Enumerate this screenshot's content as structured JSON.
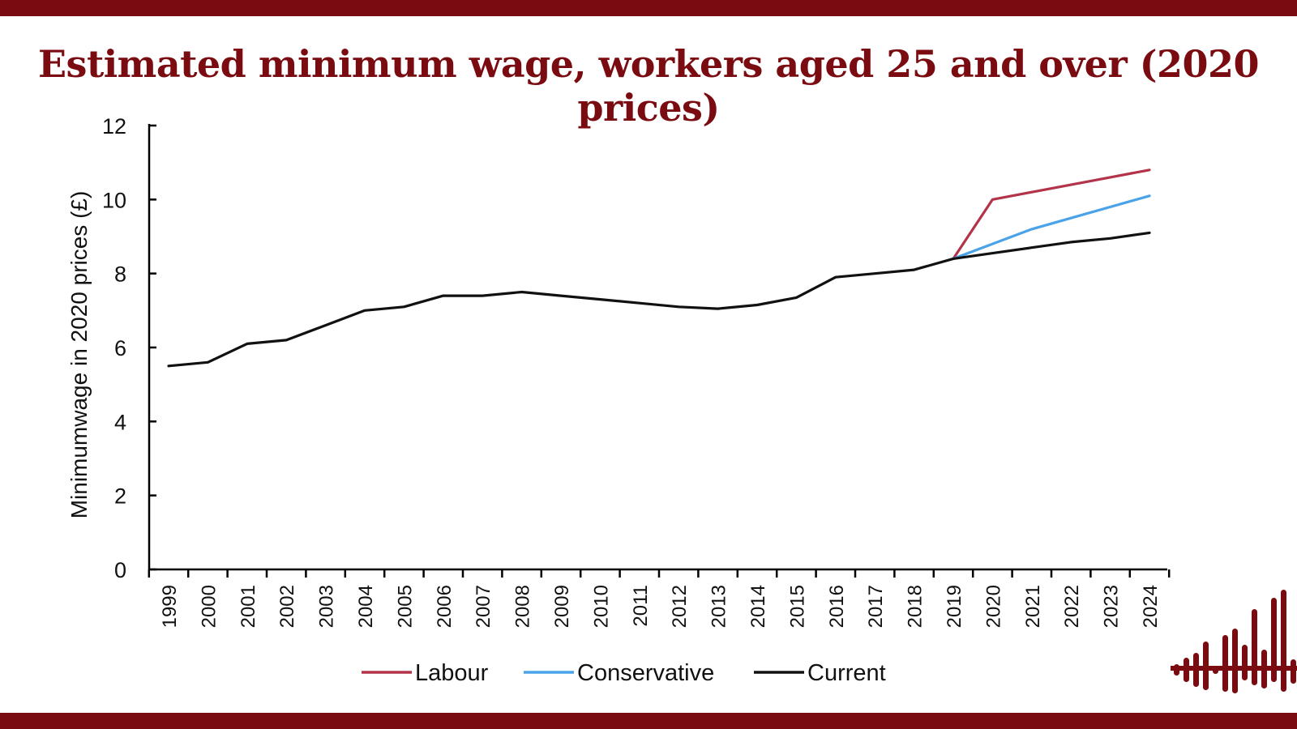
{
  "title": "Estimated minimum wage, workers aged 25 and over (2020 prices)",
  "colors": {
    "frame": "#7a0b10",
    "labour": "#b3334a",
    "conservative": "#4aa3e8",
    "current": "#111111"
  },
  "logo_icon": "bar-equalizer-icon",
  "chart_data": {
    "type": "line",
    "title": "Estimated minimum wage, workers aged 25 and over (2020 prices)",
    "xlabel": "",
    "ylabel": "Minimumwage in 2020 prices (£)",
    "x": [
      "1999",
      "2000",
      "2001",
      "2002",
      "2003",
      "2004",
      "2005",
      "2006",
      "2007",
      "2008",
      "2009",
      "2010",
      "2011",
      "2012",
      "2013",
      "2014",
      "2015",
      "2016",
      "2017",
      "2018",
      "2019",
      "2020",
      "2021",
      "2022",
      "2023",
      "2024"
    ],
    "ylim": [
      0,
      12
    ],
    "yticks": [
      0,
      2,
      4,
      6,
      8,
      10,
      12
    ],
    "grid": false,
    "legend": "bottom",
    "series": [
      {
        "name": "Labour",
        "color": "#b3334a",
        "values": [
          null,
          null,
          null,
          null,
          null,
          null,
          null,
          null,
          null,
          null,
          null,
          null,
          null,
          null,
          null,
          null,
          null,
          null,
          null,
          null,
          8.4,
          10.0,
          10.2,
          10.4,
          10.6,
          10.8
        ]
      },
      {
        "name": "Conservative",
        "color": "#4aa3e8",
        "values": [
          null,
          null,
          null,
          null,
          null,
          null,
          null,
          null,
          null,
          null,
          null,
          null,
          null,
          null,
          null,
          null,
          null,
          null,
          null,
          null,
          8.4,
          8.8,
          9.2,
          9.5,
          9.8,
          10.1
        ]
      },
      {
        "name": "Current",
        "color": "#111111",
        "values": [
          5.5,
          5.6,
          6.1,
          6.2,
          6.6,
          7.0,
          7.1,
          7.4,
          7.4,
          7.5,
          7.4,
          7.3,
          7.2,
          7.1,
          7.05,
          7.15,
          7.35,
          7.9,
          8.0,
          8.1,
          8.4,
          8.55,
          8.7,
          8.85,
          8.95,
          9.1
        ]
      }
    ]
  }
}
